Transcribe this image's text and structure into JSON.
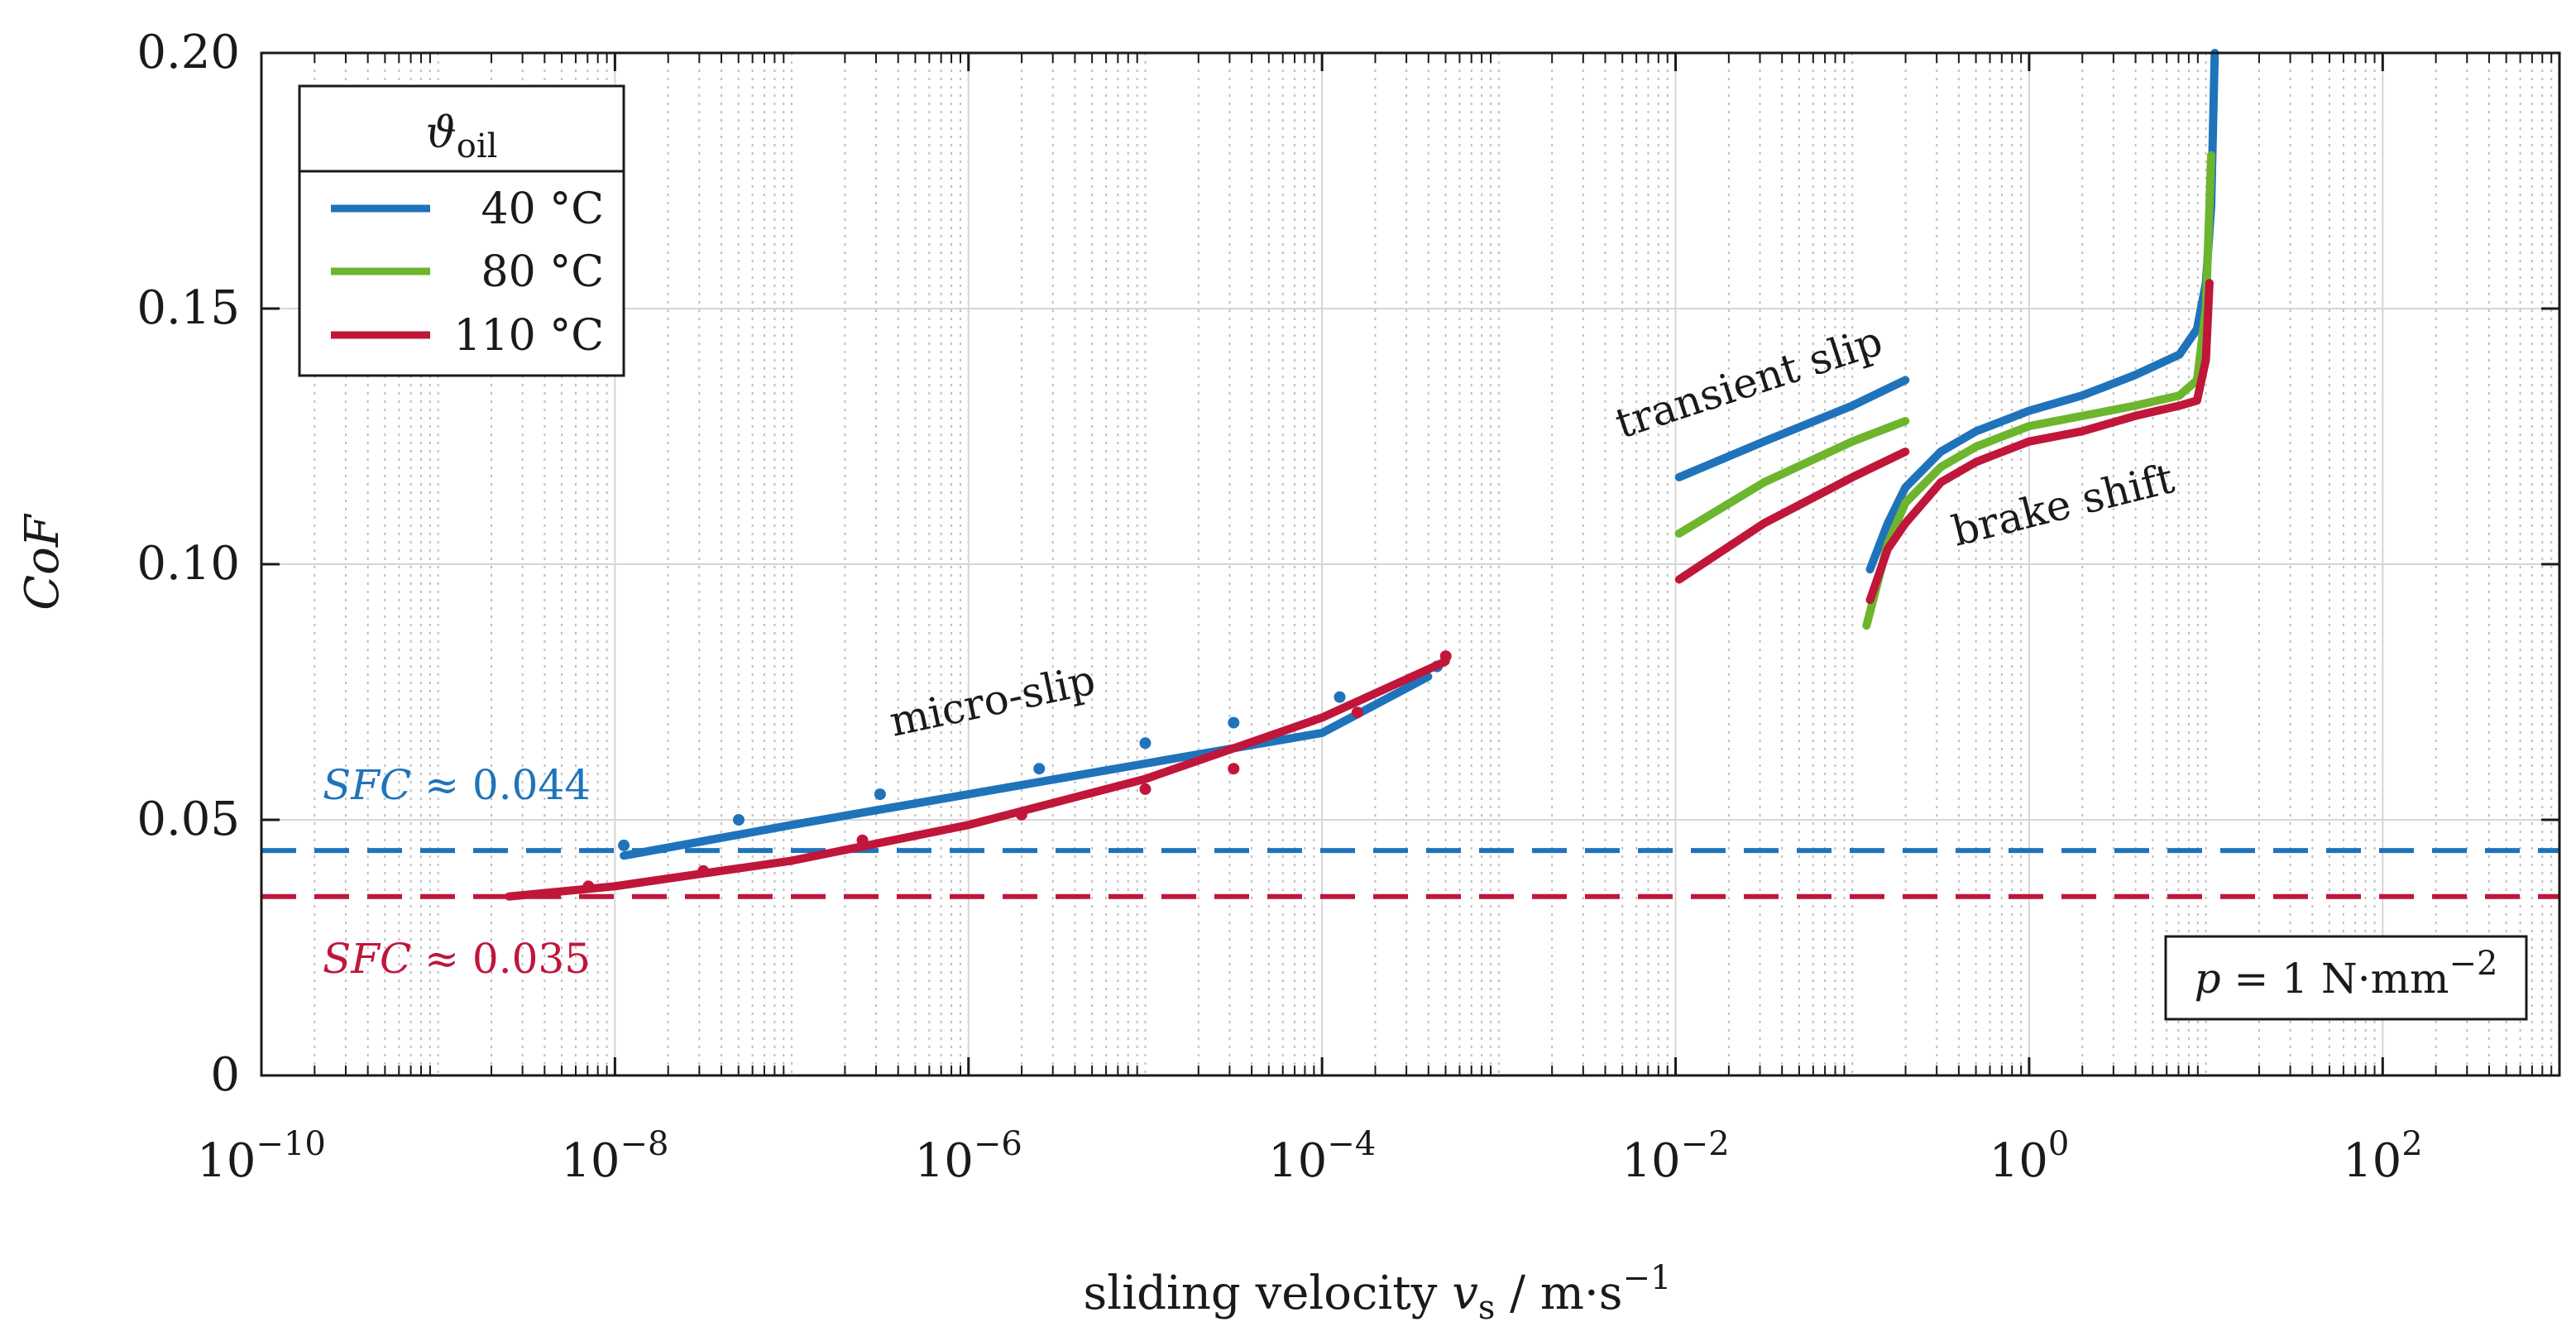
{
  "chart_data": {
    "type": "line",
    "x_scale": "log",
    "xlabel_prefix": "sliding velocity ",
    "xlabel_var": "v",
    "xlabel_sub": "s",
    "xlabel_units": " / m·s",
    "xlabel_sup": "−1",
    "ylabel": "CoF",
    "xlim_exp": [
      -10,
      3
    ],
    "ylim": [
      0,
      0.2
    ],
    "x_ticks": [
      {
        "base": "10",
        "exp": "−10",
        "value": -10
      },
      {
        "base": "10",
        "exp": "−8",
        "value": -8
      },
      {
        "base": "10",
        "exp": "−6",
        "value": -6
      },
      {
        "base": "10",
        "exp": "−4",
        "value": -4
      },
      {
        "base": "10",
        "exp": "−2",
        "value": -2
      },
      {
        "base": "10",
        "exp": "0",
        "value": 0
      },
      {
        "base": "10",
        "exp": "2",
        "value": 2
      }
    ],
    "y_ticks": [
      {
        "label": "0",
        "value": 0
      },
      {
        "label": "0.05",
        "value": 0.05
      },
      {
        "label": "0.10",
        "value": 0.1
      },
      {
        "label": "0.15",
        "value": 0.15
      },
      {
        "label": "0.20",
        "value": 0.2
      }
    ],
    "legend": {
      "title_symbol": "ϑ",
      "title_sub": "oil",
      "entries": [
        {
          "label": "40 °C",
          "color": "#1f73bb"
        },
        {
          "label": "80 °C",
          "color": "#6cb52d"
        },
        {
          "label": "110 °C",
          "color": "#c0163a"
        }
      ]
    },
    "reference_lines": [
      {
        "label": "SFC ≈ 0.044",
        "label_var": "SFC",
        "label_rest": " ≈ 0.044",
        "y": 0.044,
        "color": "#1f73bb"
      },
      {
        "label": "SFC ≈ 0.035",
        "label_var": "SFC",
        "label_rest": " ≈ 0.035",
        "y": 0.035,
        "color": "#c0163a"
      }
    ],
    "annotations": {
      "micro_slip": "micro-slip",
      "transient_slip": "transient slip",
      "brake_shift": "brake shift",
      "pressure_var": "p",
      "pressure_rest": " = 1 N·mm",
      "pressure_sup": "−2"
    },
    "series": [
      {
        "name": "40 °C",
        "color": "#1f73bb",
        "segments": [
          {
            "region": "micro-slip",
            "log_x": [
              -7.95,
              -7,
              -6,
              -5,
              -4,
              -3.4
            ],
            "y": [
              0.043,
              0.049,
              0.055,
              0.061,
              0.067,
              0.078
            ]
          },
          {
            "region": "transient slip",
            "log_x": [
              -1.98,
              -1.5,
              -1,
              -0.7
            ],
            "y": [
              0.117,
              0.124,
              0.131,
              0.136
            ]
          },
          {
            "region": "brake shift",
            "log_x": [
              -0.9,
              -0.8,
              -0.7,
              -0.5,
              -0.3,
              0,
              0.3,
              0.6,
              0.85,
              0.95,
              1.0,
              1.03,
              1.05
            ],
            "y": [
              0.099,
              0.108,
              0.115,
              0.122,
              0.126,
              0.13,
              0.133,
              0.137,
              0.141,
              0.146,
              0.155,
              0.17,
              0.2
            ]
          }
        ],
        "points": {
          "log_x": [
            -7.95,
            -7.3,
            -6.5,
            -5.6,
            -5.0,
            -4.5,
            -3.9,
            -3.35
          ],
          "y": [
            0.045,
            0.05,
            0.055,
            0.06,
            0.065,
            0.069,
            0.074,
            0.08
          ]
        }
      },
      {
        "name": "80 °C",
        "color": "#6cb52d",
        "segments": [
          {
            "region": "transient slip",
            "log_x": [
              -1.98,
              -1.5,
              -1,
              -0.7
            ],
            "y": [
              0.106,
              0.116,
              0.124,
              0.128
            ]
          },
          {
            "region": "brake shift",
            "log_x": [
              -0.92,
              -0.8,
              -0.7,
              -0.5,
              -0.3,
              0,
              0.3,
              0.6,
              0.85,
              0.95,
              1.0,
              1.03
            ],
            "y": [
              0.088,
              0.104,
              0.112,
              0.119,
              0.123,
              0.127,
              0.129,
              0.131,
              0.133,
              0.136,
              0.15,
              0.18
            ]
          }
        ]
      },
      {
        "name": "110 °C",
        "color": "#c0163a",
        "segments": [
          {
            "region": "micro-slip",
            "log_x": [
              -8.6,
              -8,
              -7,
              -6,
              -5,
              -4,
              -3.3
            ],
            "y": [
              0.035,
              0.037,
              0.042,
              0.049,
              0.058,
              0.07,
              0.081
            ]
          },
          {
            "region": "transient slip",
            "log_x": [
              -1.98,
              -1.5,
              -1,
              -0.7
            ],
            "y": [
              0.097,
              0.108,
              0.117,
              0.122
            ]
          },
          {
            "region": "brake shift",
            "log_x": [
              -0.9,
              -0.8,
              -0.7,
              -0.5,
              -0.3,
              0,
              0.3,
              0.6,
              0.85,
              0.95,
              1.0,
              1.02
            ],
            "y": [
              0.093,
              0.103,
              0.108,
              0.116,
              0.12,
              0.124,
              0.126,
              0.129,
              0.131,
              0.132,
              0.14,
              0.155
            ]
          }
        ],
        "points": {
          "log_x": [
            -8.15,
            -7.5,
            -6.6,
            -5.7,
            -5.0,
            -4.5,
            -3.8,
            -3.3
          ],
          "y": [
            0.037,
            0.04,
            0.046,
            0.051,
            0.056,
            0.06,
            0.071,
            0.082
          ]
        }
      }
    ]
  }
}
